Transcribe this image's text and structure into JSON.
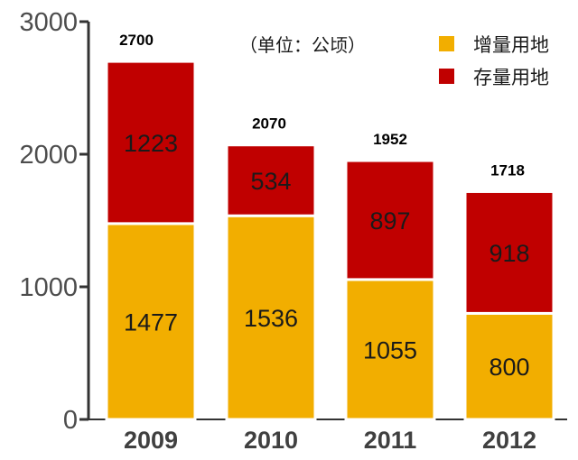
{
  "chart_data": {
    "type": "bar",
    "stacked": true,
    "categories": [
      "2009",
      "2010",
      "2011",
      "2012"
    ],
    "series": [
      {
        "name": "增量用地",
        "values": [
          1477,
          1536,
          1055,
          800
        ],
        "color": "#f2ae00"
      },
      {
        "name": "存量用地",
        "values": [
          1223,
          534,
          897,
          918
        ],
        "color": "#c00000"
      }
    ],
    "totals": [
      "2700",
      "2070",
      "1952",
      "1718"
    ],
    "unit_note": "（单位：公顷）",
    "ylim": [
      0,
      3000
    ],
    "yticks": [
      0,
      1000,
      2000,
      3000
    ],
    "grid": false,
    "legend_position": "top-right"
  }
}
